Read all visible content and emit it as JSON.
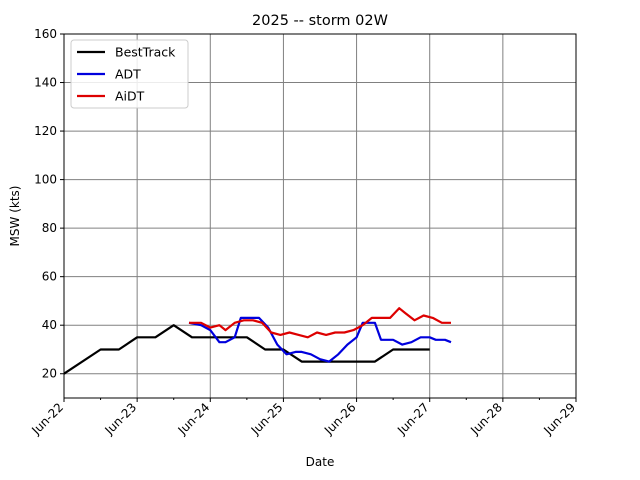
{
  "chart_data": {
    "type": "line",
    "title": "2025 -- storm 02W",
    "xlabel": "Date",
    "ylabel": "MSW (kts)",
    "xlim": [
      "2025-06-22",
      "2025-06-29"
    ],
    "ylim": [
      10,
      160
    ],
    "x_ticks": [
      "Jun-22",
      "Jun-23",
      "Jun-24",
      "Jun-25",
      "Jun-26",
      "Jun-27",
      "Jun-28",
      "Jun-29"
    ],
    "y_ticks": [
      20,
      40,
      60,
      80,
      100,
      120,
      140,
      160
    ],
    "grid": true,
    "legend_position": "upper-left",
    "series": [
      {
        "name": "BestTrack",
        "color": "#000000",
        "x": [
          "2025-06-22 00:00",
          "2025-06-22 12:00",
          "2025-06-22 18:00",
          "2025-06-23 00:00",
          "2025-06-23 06:00",
          "2025-06-23 12:00",
          "2025-06-23 18:00",
          "2025-06-24 00:00",
          "2025-06-24 06:00",
          "2025-06-24 12:00",
          "2025-06-24 18:00",
          "2025-06-25 00:00",
          "2025-06-25 06:00",
          "2025-06-25 12:00",
          "2025-06-25 18:00",
          "2025-06-26 00:00",
          "2025-06-26 06:00",
          "2025-06-26 12:00",
          "2025-06-26 18:00",
          "2025-06-27 00:00"
        ],
        "y": [
          20,
          30,
          30,
          35,
          35,
          40,
          35,
          35,
          35,
          35,
          30,
          30,
          25,
          25,
          25,
          25,
          25,
          30,
          30,
          30
        ]
      },
      {
        "name": "ADT",
        "color": "#0000dd",
        "x": [
          "2025-06-23 17:00",
          "2025-06-23 21:00",
          "2025-06-24 00:00",
          "2025-06-24 03:00",
          "2025-06-24 05:00",
          "2025-06-24 08:00",
          "2025-06-24 10:00",
          "2025-06-24 13:00",
          "2025-06-24 16:00",
          "2025-06-24 19:00",
          "2025-06-24 22:00",
          "2025-06-25 01:00",
          "2025-06-25 04:00",
          "2025-06-25 06:00",
          "2025-06-25 09:00",
          "2025-06-25 12:00",
          "2025-06-25 15:00",
          "2025-06-25 18:00",
          "2025-06-25 21:00",
          "2025-06-26 00:00",
          "2025-06-26 02:00",
          "2025-06-26 06:00",
          "2025-06-26 08:00",
          "2025-06-26 12:00",
          "2025-06-26 15:00",
          "2025-06-26 18:00",
          "2025-06-26 21:00",
          "2025-06-27 00:00",
          "2025-06-27 02:00",
          "2025-06-27 05:00",
          "2025-06-27 07:00"
        ],
        "y": [
          41,
          40,
          38,
          33,
          33,
          35,
          43,
          43,
          43,
          39,
          32,
          28,
          29,
          29,
          28,
          26,
          25,
          28,
          32,
          35,
          41,
          41,
          34,
          34,
          32,
          33,
          35,
          35,
          34,
          34,
          33
        ]
      },
      {
        "name": "AiDT",
        "color": "#dd0000",
        "x": [
          "2025-06-23 17:00",
          "2025-06-23 21:00",
          "2025-06-24 00:00",
          "2025-06-24 03:00",
          "2025-06-24 05:00",
          "2025-06-24 08:00",
          "2025-06-24 11:00",
          "2025-06-24 14:00",
          "2025-06-24 17:00",
          "2025-06-24 20:00",
          "2025-06-24 23:00",
          "2025-06-25 02:00",
          "2025-06-25 05:00",
          "2025-06-25 08:00",
          "2025-06-25 11:00",
          "2025-06-25 14:00",
          "2025-06-25 17:00",
          "2025-06-25 20:00",
          "2025-06-25 23:00",
          "2025-06-26 02:00",
          "2025-06-26 05:00",
          "2025-06-26 08:00",
          "2025-06-26 11:00",
          "2025-06-26 14:00",
          "2025-06-26 16:00",
          "2025-06-26 19:00",
          "2025-06-26 22:00",
          "2025-06-27 01:00",
          "2025-06-27 04:00",
          "2025-06-27 07:00"
        ],
        "y": [
          41,
          41,
          39,
          40,
          38,
          41,
          42,
          42,
          41,
          37,
          36,
          37,
          36,
          35,
          37,
          36,
          37,
          37,
          38,
          40,
          43,
          43,
          43,
          47,
          45,
          42,
          44,
          43,
          41,
          41
        ]
      }
    ]
  }
}
